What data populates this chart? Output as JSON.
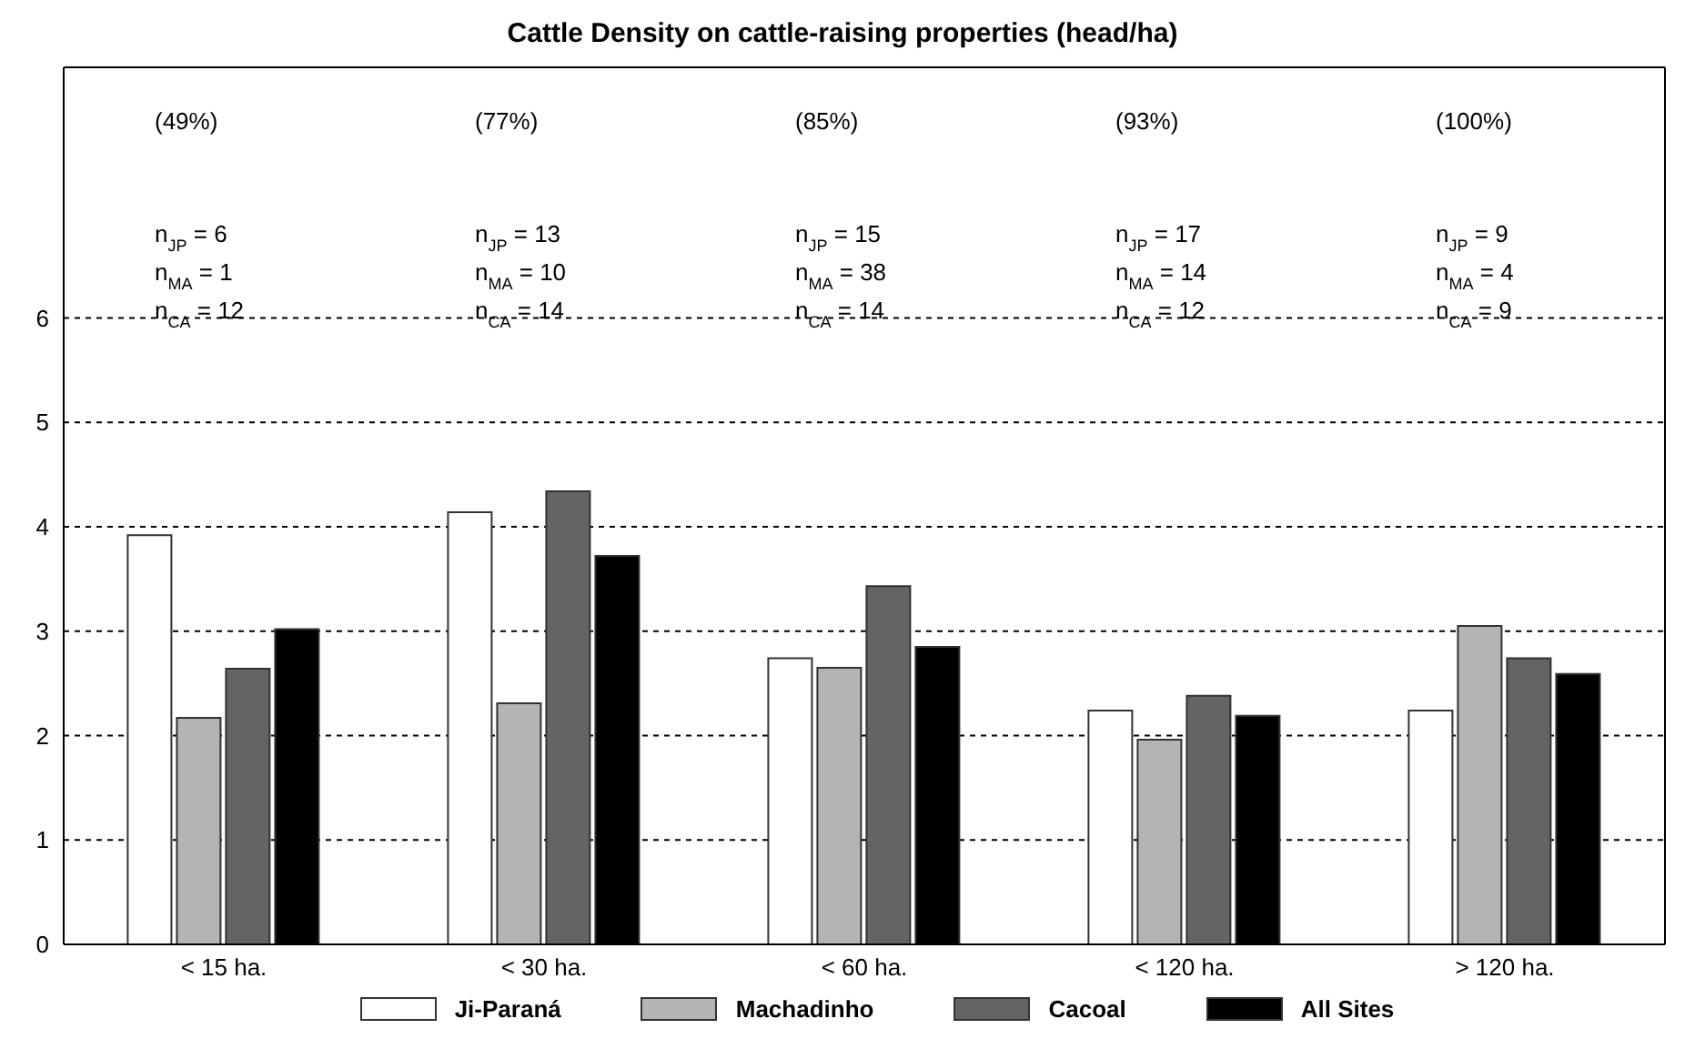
{
  "chart_data": {
    "type": "bar",
    "title": "Cattle Density on cattle-raising properties (head/ha)",
    "categories": [
      "< 15 ha.",
      "< 30 ha.",
      "< 60 ha.",
      "< 120 ha.",
      "> 120 ha."
    ],
    "series": [
      {
        "name": "Ji-Paraná",
        "color": "#ffffff",
        "values": [
          3.92,
          4.14,
          2.74,
          2.24,
          2.24
        ]
      },
      {
        "name": "Machadinho",
        "color": "#b4b4b4",
        "values": [
          2.17,
          2.31,
          2.65,
          1.96,
          3.05
        ]
      },
      {
        "name": "Cacoal",
        "color": "#646464",
        "values": [
          2.64,
          4.34,
          3.43,
          2.38,
          2.74
        ]
      },
      {
        "name": "All Sites",
        "color": "#000000",
        "values": [
          3.02,
          3.72,
          2.85,
          2.19,
          2.59
        ]
      }
    ],
    "ylim": [
      0,
      8.4
    ],
    "yticks": [
      0,
      1,
      2,
      3,
      4,
      5,
      6
    ],
    "grid": "y",
    "legend": "bottom",
    "annotations": [
      "(49%)",
      "n$_{JP}$ = 6",
      "n$_{MA}$ = 1",
      "n$_{CA}$ = 12",
      "(77%)",
      "n$_{JP}$ = 13",
      "n$_{MA}$ = 10",
      "n$_{CA}$ = 14",
      "(85%)",
      "n$_{JP}$ = 15",
      "n$_{MA}$ = 38",
      "n$_{CA}$ = 14",
      "(93%)",
      "n$_{JP}$ = 17",
      "n$_{MA}$ = 14",
      "n$_{CA}$ = 12",
      "(100%)",
      "n$_{JP}$ = 9",
      "n$_{MA}$ = 4",
      "n$_{CA}$ = 9"
    ]
  }
}
